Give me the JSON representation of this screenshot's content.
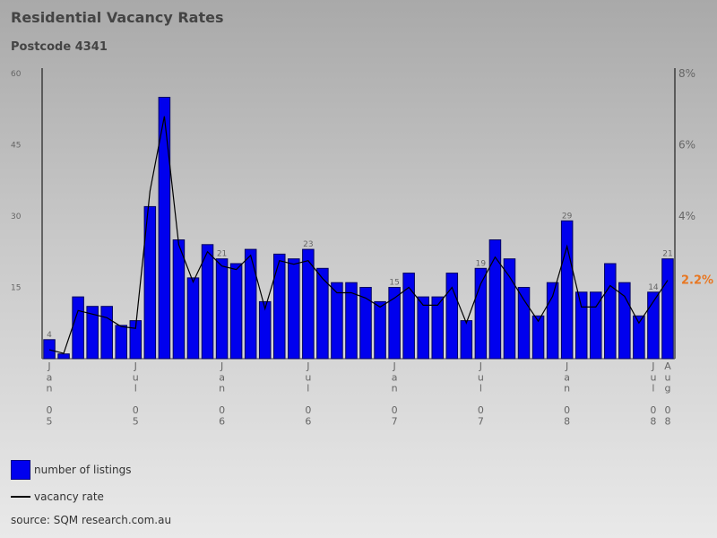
{
  "chart_data": {
    "type": "bar",
    "title": "Residential Vacancy Rates",
    "subtitle": "Postcode 4341",
    "left_axis": {
      "ylim": [
        0,
        60
      ],
      "ticks": [
        "60",
        "45",
        "30",
        "15"
      ]
    },
    "right_axis": {
      "ylim": [
        0,
        8
      ],
      "ticks": [
        "8%",
        "6%",
        "4%",
        "2.2%"
      ],
      "current_value_label": "2.2%"
    },
    "x_labels": [
      {
        "index": 0,
        "lines": [
          "J",
          "a",
          "n",
          "",
          "0",
          "5"
        ]
      },
      {
        "index": 6,
        "lines": [
          "J",
          "u",
          "l",
          "",
          "0",
          "5"
        ]
      },
      {
        "index": 12,
        "lines": [
          "J",
          "a",
          "n",
          "",
          "0",
          "6"
        ]
      },
      {
        "index": 18,
        "lines": [
          "J",
          "u",
          "l",
          "",
          "0",
          "6"
        ]
      },
      {
        "index": 24,
        "lines": [
          "J",
          "a",
          "n",
          "",
          "0",
          "7"
        ]
      },
      {
        "index": 30,
        "lines": [
          "J",
          "u",
          "l",
          "",
          "0",
          "7"
        ]
      },
      {
        "index": 36,
        "lines": [
          "J",
          "a",
          "n",
          "",
          "0",
          "8"
        ]
      },
      {
        "index": 42,
        "lines": [
          "J",
          "u",
          "l",
          "",
          "0",
          "8"
        ]
      },
      {
        "index": 43,
        "lines": [
          "A",
          "u",
          "g",
          "",
          "0",
          "8"
        ]
      }
    ],
    "series": [
      {
        "name": "number of listings",
        "axis": "left",
        "values": [
          4,
          1,
          13,
          11,
          11,
          7,
          8,
          32,
          55,
          25,
          17,
          24,
          21,
          20,
          23,
          12,
          22,
          21,
          23,
          19,
          16,
          16,
          15,
          12,
          15,
          18,
          13,
          13,
          18,
          8,
          19,
          25,
          21,
          15,
          9,
          16,
          29,
          14,
          14,
          20,
          16,
          9,
          14,
          21
        ]
      },
      {
        "name": "vacancy rate",
        "axis": "right",
        "values": [
          0.25,
          0.15,
          1.35,
          1.25,
          1.15,
          0.9,
          0.85,
          4.7,
          6.8,
          3.2,
          2.15,
          3.0,
          2.6,
          2.5,
          2.9,
          1.4,
          2.75,
          2.65,
          2.75,
          2.25,
          1.85,
          1.85,
          1.7,
          1.45,
          1.7,
          2.0,
          1.5,
          1.5,
          2.0,
          1.0,
          2.1,
          2.85,
          2.3,
          1.65,
          1.05,
          1.75,
          3.15,
          1.45,
          1.45,
          2.05,
          1.75,
          1.0,
          1.6,
          2.2
        ]
      }
    ],
    "data_labels": [
      {
        "index": 0,
        "text": "4"
      },
      {
        "index": 12,
        "text": "21"
      },
      {
        "index": 18,
        "text": "23"
      },
      {
        "index": 24,
        "text": "15"
      },
      {
        "index": 30,
        "text": "19"
      },
      {
        "index": 36,
        "text": "29"
      },
      {
        "index": 42,
        "text": "14"
      },
      {
        "index": 43,
        "text": "21"
      }
    ]
  },
  "legend": {
    "listings_label": "number of listings",
    "vacancy_label": "vacancy rate"
  },
  "source": "source: SQM research.com.au",
  "colors": {
    "bar_fill": "#0000ee",
    "bar_stroke": "#000060",
    "line": "#000000",
    "axis_text": "#666666",
    "highlight": "#e87722"
  }
}
